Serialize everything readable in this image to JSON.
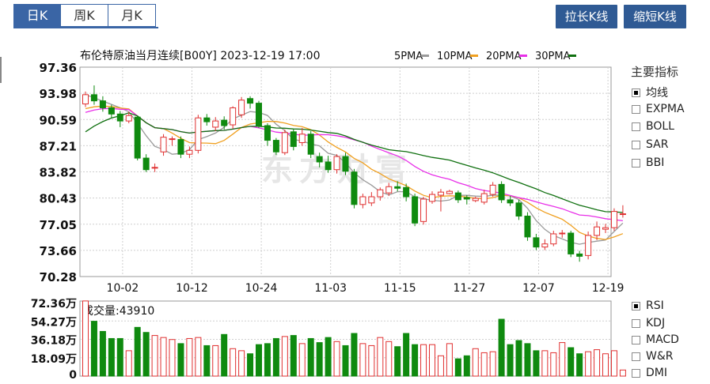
{
  "tabs": [
    {
      "label": "日K",
      "active": true
    },
    {
      "label": "周K",
      "active": false
    },
    {
      "label": "月K",
      "active": false
    }
  ],
  "buttons": {
    "stretch": "拉长K线",
    "shrink": "缩短K线"
  },
  "chart_header": {
    "title": "布伦特原油当月连续[B00Y] 2023-12-19 17:00",
    "ma_legend": [
      {
        "label": "5PMA",
        "color": "#9a9a9a"
      },
      {
        "label": "10PMA",
        "color": "#f0a020"
      },
      {
        "label": "20PMA",
        "color": "#e830e8"
      },
      {
        "label": "30PMA",
        "color": "#107010"
      }
    ]
  },
  "indicators": {
    "title": "主要指标",
    "items": [
      {
        "label": "均线",
        "checked": true
      },
      {
        "label": "EXPMA",
        "checked": false
      },
      {
        "label": "BOLL",
        "checked": false
      },
      {
        "label": "SAR",
        "checked": false
      },
      {
        "label": "BBI",
        "checked": false
      }
    ]
  },
  "sub_indicators": [
    {
      "label": "RSI",
      "checked": true
    },
    {
      "label": "KDJ",
      "checked": false
    },
    {
      "label": "MACD",
      "checked": false
    },
    {
      "label": "W&R",
      "checked": false
    },
    {
      "label": "DMI",
      "checked": false
    }
  ],
  "volume_label": "成交量:43910",
  "watermark": "东方财富",
  "colors": {
    "up": "#e03030",
    "down": "#0f8a0f",
    "accent": "#3a65a5"
  },
  "chart_data": {
    "type": "candlestick",
    "price_axis": {
      "min": 70.28,
      "max": 97.36,
      "ticks": [
        "97.36",
        "93.98",
        "90.59",
        "87.21",
        "83.82",
        "80.43",
        "77.05",
        "73.66",
        "70.28"
      ]
    },
    "volume_axis": {
      "max_wan": 72.36,
      "ticks": [
        "72.36万",
        "54.27万",
        "36.18万",
        "18.09万",
        "0"
      ]
    },
    "x_labels": [
      {
        "label": "10-02",
        "index": 2
      },
      {
        "label": "10-12",
        "index": 10
      },
      {
        "label": "10-24",
        "index": 18
      },
      {
        "label": "11-03",
        "index": 26
      },
      {
        "label": "11-15",
        "index": 34
      },
      {
        "label": "11-27",
        "index": 42
      },
      {
        "label": "12-07",
        "index": 50
      },
      {
        "label": "12-19",
        "index": 58
      }
    ],
    "candles": [
      [
        92.6,
        93.8,
        94.2,
        92.2,
        74
      ],
      [
        93.8,
        93.0,
        95.0,
        92.5,
        54
      ],
      [
        93.0,
        92.1,
        93.6,
        91.6,
        44
      ],
      [
        92.1,
        91.3,
        92.5,
        90.8,
        37
      ],
      [
        91.3,
        90.4,
        91.7,
        89.6,
        37
      ],
      [
        90.4,
        91.1,
        91.6,
        90.1,
        25
      ],
      [
        90.9,
        85.6,
        91.1,
        85.3,
        48
      ],
      [
        85.6,
        84.1,
        86.1,
        83.8,
        43
      ],
      [
        84.4,
        84.4,
        84.9,
        83.8,
        40
      ],
      [
        86.4,
        88.3,
        88.7,
        85.9,
        38
      ],
      [
        88.0,
        88.1,
        88.4,
        87.2,
        36
      ],
      [
        88.0,
        86.1,
        88.4,
        85.6,
        32
      ],
      [
        86.1,
        86.6,
        87.1,
        85.6,
        37
      ],
      [
        86.6,
        90.8,
        91.2,
        86.2,
        38
      ],
      [
        90.8,
        90.3,
        91.3,
        89.8,
        30
      ],
      [
        89.6,
        90.4,
        90.9,
        89.1,
        30
      ],
      [
        90.5,
        89.8,
        91.0,
        89.3,
        41
      ],
      [
        89.9,
        92.1,
        92.3,
        89.4,
        27
      ],
      [
        91.2,
        93.1,
        93.5,
        90.8,
        25
      ],
      [
        93.3,
        92.7,
        93.6,
        92.0,
        22
      ],
      [
        92.7,
        89.8,
        93.0,
        89.5,
        31
      ],
      [
        89.8,
        87.9,
        90.1,
        87.2,
        32
      ],
      [
        87.9,
        86.4,
        88.2,
        86.0,
        37
      ],
      [
        86.3,
        88.9,
        89.3,
        86.0,
        39
      ],
      [
        89.0,
        87.1,
        89.4,
        86.6,
        40
      ],
      [
        87.6,
        88.7,
        89.5,
        87.2,
        32
      ],
      [
        88.7,
        86.1,
        89.1,
        85.6,
        37
      ],
      [
        85.8,
        85.1,
        86.3,
        84.4,
        33
      ],
      [
        85.1,
        84.1,
        85.9,
        83.7,
        38
      ],
      [
        84.1,
        85.8,
        86.1,
        83.6,
        34
      ],
      [
        85.8,
        83.9,
        86.3,
        83.4,
        30
      ],
      [
        83.8,
        79.6,
        84.2,
        79.1,
        42
      ],
      [
        79.6,
        80.6,
        81.0,
        79.1,
        32
      ],
      [
        79.8,
        80.6,
        81.2,
        79.4,
        30
      ],
      [
        80.6,
        81.5,
        81.8,
        80.1,
        38
      ],
      [
        81.1,
        81.9,
        82.4,
        80.7,
        34
      ],
      [
        81.9,
        81.7,
        82.6,
        81.3,
        29
      ],
      [
        81.8,
        80.6,
        82.3,
        80.0,
        42
      ],
      [
        80.6,
        77.2,
        81.0,
        76.8,
        31
      ],
      [
        77.4,
        80.3,
        80.6,
        77.0,
        31
      ],
      [
        80.0,
        80.9,
        81.3,
        79.7,
        31
      ],
      [
        80.8,
        81.2,
        81.6,
        78.7,
        20
      ],
      [
        81.0,
        81.3,
        81.5,
        80.9,
        32
      ],
      [
        81.1,
        80.2,
        81.4,
        79.8,
        17
      ],
      [
        80.5,
        80.3,
        80.8,
        79.6,
        20
      ],
      [
        80.1,
        80.4,
        80.6,
        79.9,
        27
      ],
      [
        79.9,
        81.0,
        81.5,
        79.6,
        23
      ],
      [
        80.9,
        82.1,
        82.5,
        80.6,
        24
      ],
      [
        82.2,
        80.2,
        82.6,
        79.8,
        56
      ],
      [
        80.2,
        79.8,
        80.7,
        79.4,
        31
      ],
      [
        79.8,
        78.1,
        80.2,
        77.6,
        35
      ],
      [
        78.1,
        75.4,
        78.6,
        74.9,
        32
      ],
      [
        75.3,
        74.1,
        75.8,
        73.7,
        25
      ],
      [
        74.1,
        74.5,
        75.1,
        73.7,
        25
      ],
      [
        74.5,
        75.8,
        76.2,
        74.2,
        23
      ],
      [
        75.8,
        75.9,
        76.3,
        75.3,
        33
      ],
      [
        75.9,
        73.2,
        76.2,
        72.8,
        28
      ],
      [
        73.2,
        72.9,
        73.6,
        72.2,
        22
      ],
      [
        73.0,
        75.6,
        76.1,
        72.5,
        24
      ],
      [
        75.6,
        76.7,
        77.4,
        75.0,
        26
      ],
      [
        76.4,
        76.6,
        77.1,
        75.9,
        22
      ],
      [
        76.6,
        78.7,
        79.1,
        76.2,
        25
      ],
      [
        78.4,
        78.4,
        79.5,
        77.9,
        6
      ]
    ]
  }
}
